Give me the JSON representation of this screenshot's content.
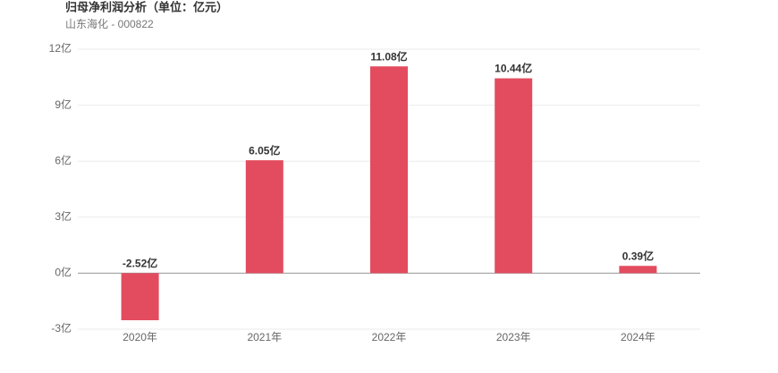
{
  "chart_data": {
    "type": "bar",
    "title": "归母净利润分析（单位：亿元）",
    "subtitle": "山东海化 - 000822",
    "categories": [
      "2020年",
      "2021年",
      "2022年",
      "2023年",
      "2024年"
    ],
    "values": [
      -2.52,
      6.05,
      11.08,
      10.44,
      0.39
    ],
    "value_labels": [
      "-2.52亿",
      "6.05亿",
      "11.08亿",
      "10.44亿",
      "0.39亿"
    ],
    "color": "#e34c5e",
    "ylim": [
      -3,
      12
    ],
    "yticks": [
      {
        "value": -3,
        "label": "-3亿"
      },
      {
        "value": 0,
        "label": "0亿"
      },
      {
        "value": 3,
        "label": "3亿"
      },
      {
        "value": 6,
        "label": "6亿"
      },
      {
        "value": 9,
        "label": "9亿"
      },
      {
        "value": 12,
        "label": "12亿"
      }
    ],
    "grid": true
  }
}
